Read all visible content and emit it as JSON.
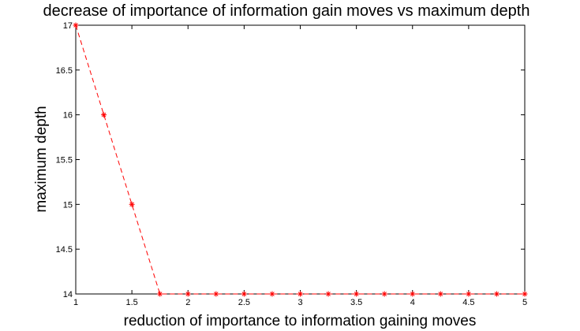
{
  "chart_data": {
    "type": "line",
    "title": "decrease of importance of information gain moves vs maximum depth",
    "xlabel": "reduction of importance to information gaining moves",
    "ylabel": "maximum depth",
    "xlim": [
      1,
      5
    ],
    "ylim": [
      14,
      17
    ],
    "xticks": [
      1,
      1.5,
      2,
      2.5,
      3,
      3.5,
      4,
      4.5,
      5
    ],
    "xtick_labels": [
      "1",
      "1.5",
      "2",
      "2.5",
      "3",
      "3.5",
      "4",
      "4.5",
      "5"
    ],
    "yticks": [
      14,
      14.5,
      15,
      15.5,
      16,
      16.5,
      17
    ],
    "ytick_labels": [
      "14",
      "14.5",
      "15",
      "15.5",
      "16",
      "16.5",
      "17"
    ],
    "grid": false,
    "legend": null,
    "series": [
      {
        "color": "#ff0000",
        "line_style": "dashed",
        "marker": "asterisk",
        "x": [
          1,
          1.25,
          1.5,
          1.75,
          2,
          2.25,
          2.5,
          2.75,
          3,
          3.25,
          3.5,
          3.75,
          4,
          4.25,
          4.5,
          4.75,
          5
        ],
        "y": [
          17,
          16,
          15,
          14,
          14,
          14,
          14,
          14,
          14,
          14,
          14,
          14,
          14,
          14,
          14,
          14,
          14
        ]
      }
    ]
  }
}
